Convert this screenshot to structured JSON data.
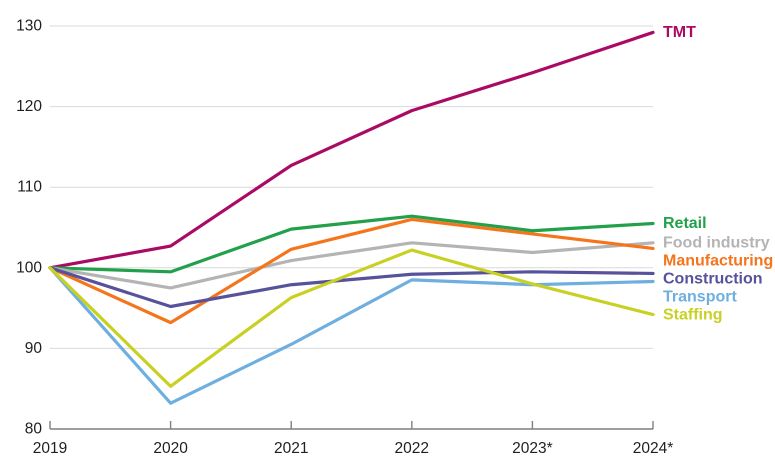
{
  "chart_data": {
    "type": "line",
    "title": "",
    "x_categories": [
      "2019",
      "2020",
      "2021",
      "2022",
      "2023*",
      "2024*"
    ],
    "y_ticks": [
      80,
      90,
      100,
      110,
      120,
      130
    ],
    "ylim": [
      80,
      130
    ],
    "grid": "horizontal-only",
    "legend_position": "right-end-labels",
    "baseline_value": 100,
    "series": [
      {
        "name": "TMT",
        "color": "#ab0a64",
        "values": [
          100,
          102.7,
          112.7,
          119.5,
          124.2,
          129.2
        ]
      },
      {
        "name": "Retail",
        "color": "#22a04a",
        "values": [
          100,
          99.5,
          104.8,
          106.4,
          104.6,
          105.5
        ]
      },
      {
        "name": "Food industry",
        "color": "#b4b4b4",
        "values": [
          100,
          97.5,
          100.9,
          103.1,
          101.9,
          103.1
        ]
      },
      {
        "name": "Manufacturing",
        "color": "#f5751d",
        "values": [
          100,
          93.2,
          102.3,
          106.0,
          104.2,
          102.4
        ]
      },
      {
        "name": "Construction",
        "color": "#56529b",
        "values": [
          100,
          95.2,
          97.9,
          99.2,
          99.5,
          99.3
        ]
      },
      {
        "name": "Transport",
        "color": "#6eafe0",
        "values": [
          100,
          83.2,
          90.5,
          98.5,
          97.9,
          98.3
        ]
      },
      {
        "name": "Staffing",
        "color": "#c8d123",
        "values": [
          100,
          85.3,
          96.3,
          102.2,
          98.0,
          94.2
        ]
      }
    ]
  },
  "axis_style": {
    "axis_line_color": "#7f7f7f",
    "grid_color": "#d9d9d9",
    "tick_label_color": "#1f1f1f"
  }
}
